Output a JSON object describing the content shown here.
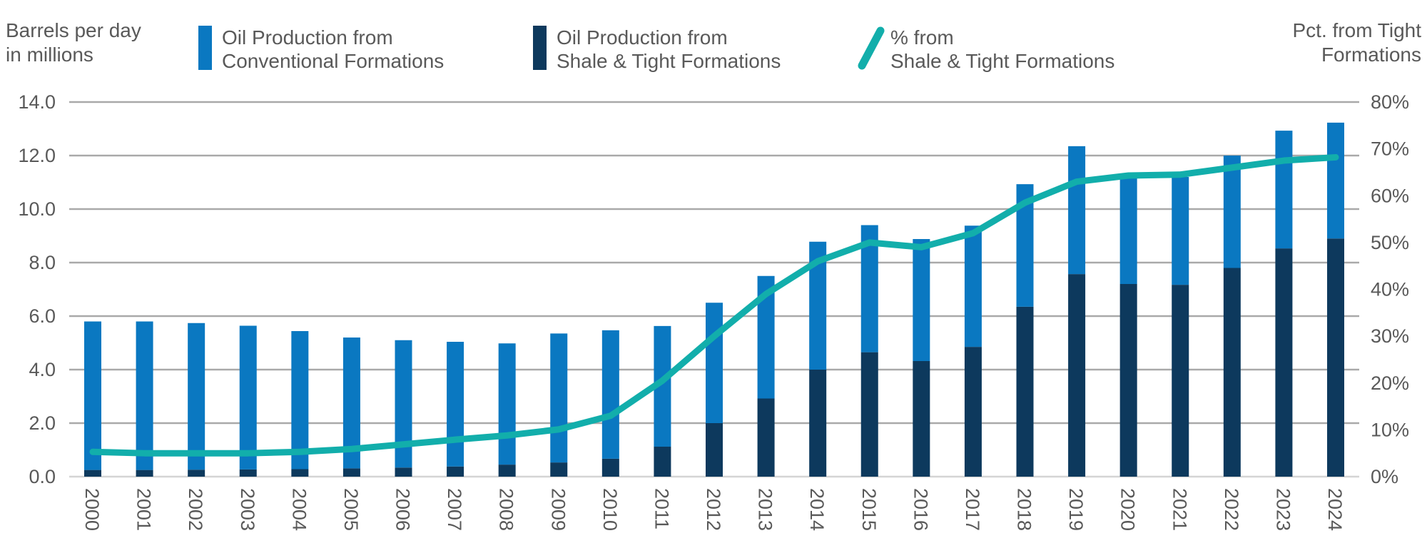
{
  "left_axis_title_lines": [
    "Barrels per day",
    "in millions"
  ],
  "right_axis_title_lines": [
    "Pct. from Tight",
    "Formations"
  ],
  "legend": {
    "items": [
      {
        "lines": [
          "Oil Production from",
          "Conventional Formations"
        ],
        "swatch": "bar",
        "color": "#0a78c1"
      },
      {
        "lines": [
          "Oil Production from",
          "Shale & Tight Formations"
        ],
        "swatch": "bar",
        "color": "#0d395d"
      },
      {
        "lines": [
          "% from",
          "Shale & Tight Formations"
        ],
        "swatch": "line",
        "color": "#12aeab"
      }
    ]
  },
  "chart_data": {
    "type": "combo-stacked-bar-line",
    "title": "",
    "categories": [
      "2000",
      "2001",
      "2002",
      "2003",
      "2004",
      "2005",
      "2006",
      "2007",
      "2008",
      "2009",
      "2010",
      "2011",
      "2012",
      "2013",
      "2014",
      "2015",
      "2016",
      "2017",
      "2018",
      "2019",
      "2020",
      "2021",
      "2022",
      "2023",
      "2024"
    ],
    "series": [
      {
        "name": "Oil Production from Shale & Tight Formations",
        "type": "bar",
        "stack_position": "bottom",
        "axis": "left",
        "color": "#0d395d",
        "values": [
          0.25,
          0.25,
          0.26,
          0.27,
          0.28,
          0.31,
          0.34,
          0.38,
          0.45,
          0.53,
          0.67,
          1.12,
          2.0,
          2.92,
          4.0,
          4.65,
          4.32,
          4.85,
          6.35,
          7.57,
          7.2,
          7.17,
          7.8,
          8.53,
          8.9
        ]
      },
      {
        "name": "Oil Production from Conventional Formations",
        "type": "bar",
        "stack_position": "top",
        "axis": "left",
        "color": "#0a78c1",
        "values": [
          5.55,
          5.55,
          5.48,
          5.37,
          5.16,
          4.89,
          4.76,
          4.66,
          4.53,
          4.82,
          4.8,
          4.51,
          4.5,
          4.58,
          4.78,
          4.75,
          4.56,
          4.53,
          4.58,
          4.78,
          4.13,
          4.03,
          4.2,
          4.4,
          4.33
        ]
      },
      {
        "name": "% from Shale & Tight Formations",
        "type": "line",
        "axis": "right",
        "color": "#12aeab",
        "values": [
          5.3,
          5.0,
          5.0,
          5.0,
          5.3,
          5.9,
          6.9,
          7.9,
          8.8,
          10.1,
          13.0,
          20.5,
          30.0,
          39.0,
          46.0,
          50.0,
          49.0,
          52.0,
          58.5,
          63.0,
          64.3,
          64.5,
          66.0,
          67.5,
          68.2
        ]
      }
    ],
    "stacked_totals": [
      5.8,
      5.8,
      5.74,
      5.64,
      5.44,
      5.2,
      5.1,
      5.04,
      4.98,
      5.35,
      5.47,
      5.63,
      6.5,
      7.5,
      8.78,
      9.4,
      8.88,
      9.38,
      10.93,
      12.35,
      11.33,
      11.2,
      12.0,
      12.93,
      13.23
    ],
    "left_axis": {
      "label": "Barrels per day in millions",
      "min": 0,
      "max": 14,
      "tick_step": 2,
      "tick_labels": [
        "0.0",
        "2.0",
        "4.0",
        "6.0",
        "8.0",
        "10.0",
        "12.0",
        "14.0"
      ]
    },
    "right_axis": {
      "label": "Pct. from Tight Formations",
      "min": 0,
      "max": 80,
      "tick_step": 10,
      "tick_labels": [
        "0%",
        "10%",
        "20%",
        "30%",
        "40%",
        "50%",
        "60%",
        "70%",
        "80%"
      ]
    },
    "grid": true,
    "legend_position": "top",
    "styles": {
      "grid_color": "#a9a9a9",
      "baseline_color": "#d4d4d4",
      "text_color": "#595959",
      "background": "#ffffff"
    }
  }
}
